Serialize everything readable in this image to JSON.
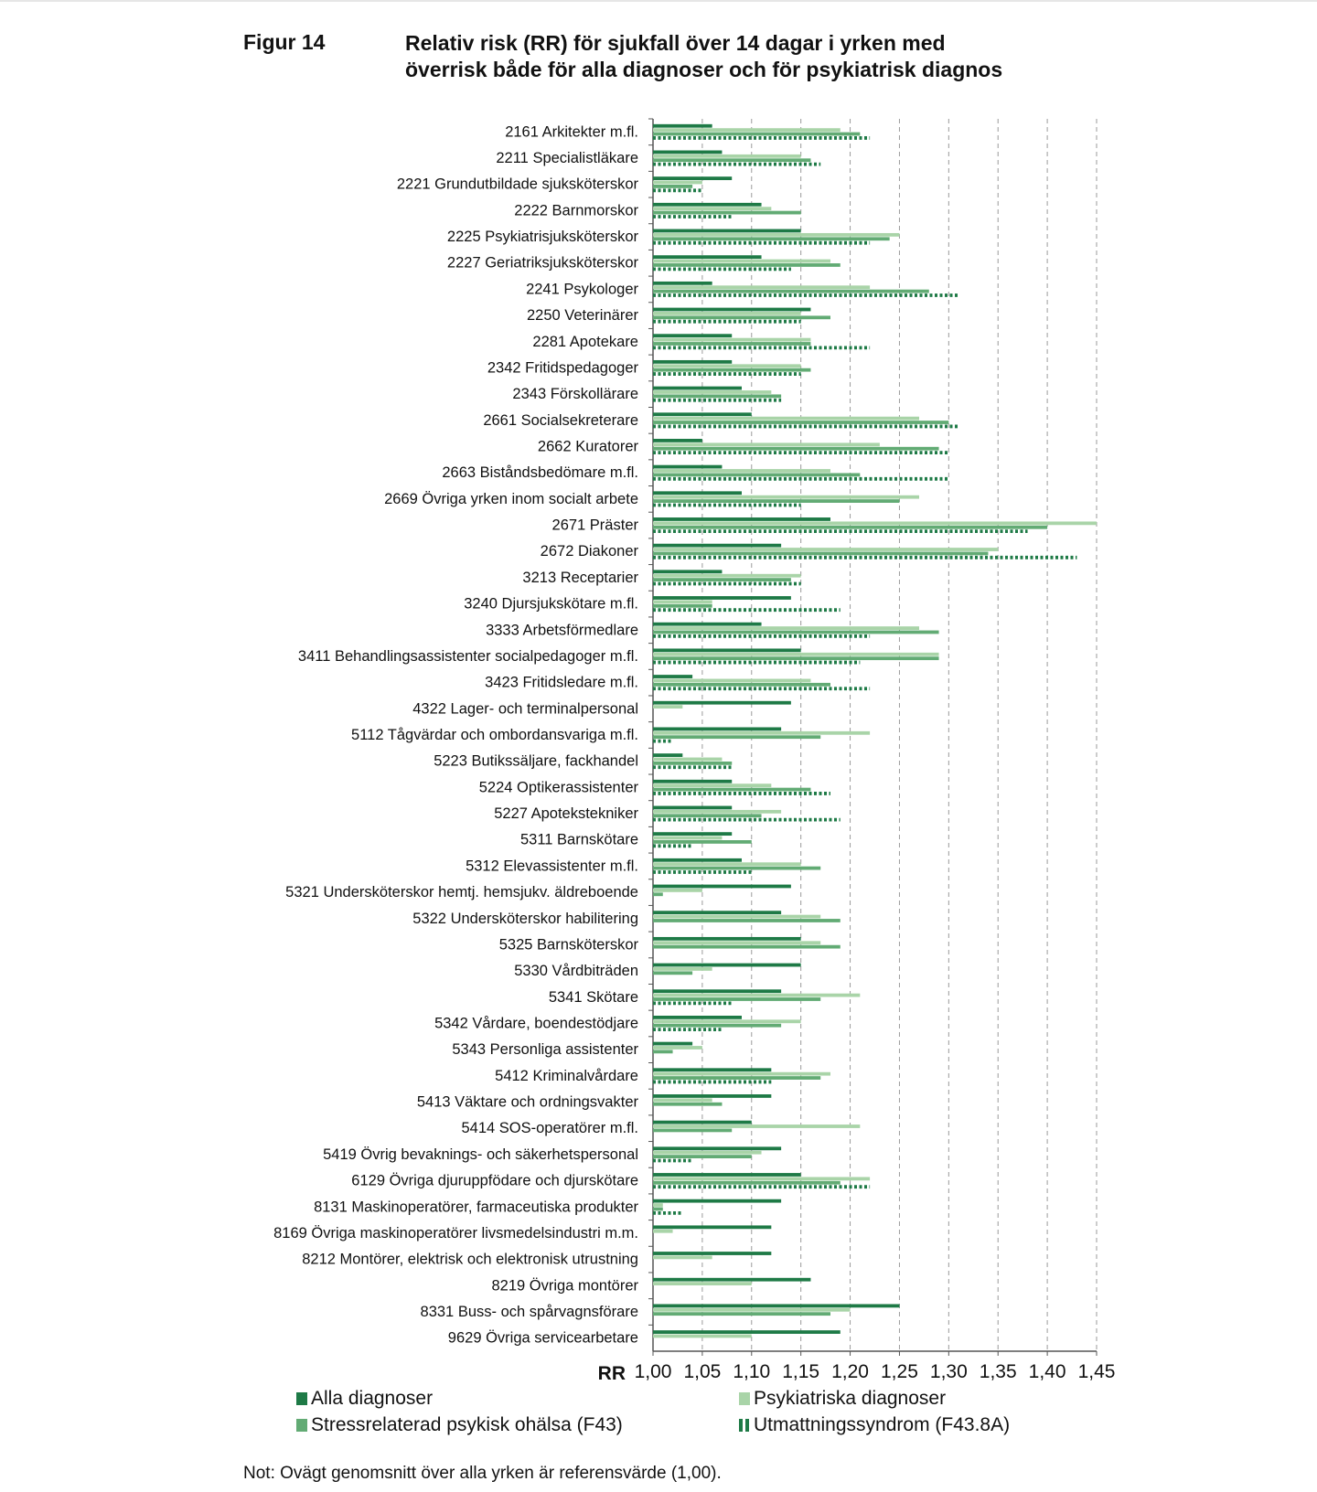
{
  "figure": {
    "label": "Figur 14",
    "title_line1": "Relativ risk (RR) för sjukfall över 14 dagar i yrken med",
    "title_line2": "överrisk både för alla diagnoser och för psykiatrisk diagnos"
  },
  "note": "Not: Ovägt genomsnitt över alla yrken är referensvärde (1,00).",
  "colors": {
    "alla": "#1e7a46",
    "psyk": "#a9d4a8",
    "stress": "#62ab74",
    "utmatt": "#1e7a46",
    "grid": "#9a9a9a"
  },
  "chart_data": {
    "type": "bar",
    "orientation": "horizontal",
    "xlabel": "RR",
    "xlim": [
      1.0,
      1.45
    ],
    "ticks": [
      "1,00",
      "1,05",
      "1,10",
      "1,15",
      "1,20",
      "1,25",
      "1,30",
      "1,35",
      "1,40",
      "1,45"
    ],
    "grid": "vertical dashed",
    "legend_position": "bottom",
    "categories": [
      "2161 Arkitekter m.fl.",
      "2211 Specialistläkare",
      "2221 Grundutbildade sjuksköterskor",
      "2222 Barnmorskor",
      "2225 Psykiatrisjuksköterskor",
      "2227 Geriatriksjuksköterskor",
      "2241 Psykologer",
      "2250 Veterinärer",
      "2281 Apotekare",
      "2342 Fritidspedagoger",
      "2343 Förskollärare",
      "2661 Socialsekreterare",
      "2662 Kuratorer",
      "2663 Biståndsbedömare m.fl.",
      "2669 Övriga yrken inom socialt arbete",
      "2671 Präster",
      "2672 Diakoner",
      "3213 Receptarier",
      "3240 Djursjukskötare m.fl.",
      "3333 Arbetsförmedlare",
      "3411 Behandlingsassistenter socialpedagoger m.fl.",
      "3423 Fritidsledare m.fl.",
      "4322 Lager- och terminalpersonal",
      "5112 Tågvärdar och ombordansvariga m.fl.",
      "5223 Butikssäljare, fackhandel",
      "5224 Optikerassistenter",
      "5227 Apotekstekniker",
      "5311 Barnskötare",
      "5312 Elevassistenter m.fl.",
      "5321 Undersköterskor hemtj. hemsjukv. äldreboende",
      "5322 Undersköterskor habilitering",
      "5325 Barnsköterskor",
      "5330 Vårdbiträden",
      "5341 Skötare",
      "5342 Vårdare, boendestödjare",
      "5343 Personliga assistenter",
      "5412 Kriminalvårdare",
      "5413 Väktare och ordningsvakter",
      "5414 SOS-operatörer m.fl.",
      "5419 Övrig bevaknings- och säkerhetspersonal",
      "6129 Övriga djuruppfödare och djurskötare",
      "8131 Maskinoperatörer, farmaceutiska produkter",
      "8169 Övriga maskinoperatörer livsmedelsindustri m.m.",
      "8212 Montörer, elektrisk och elektronisk utrustning",
      "8219 Övriga montörer",
      "8331 Buss- och spårvagnsförare",
      "9629 Övriga servicearbetare"
    ],
    "series": [
      {
        "name": "Alla diagnoser",
        "style": "solid-dark",
        "values": [
          1.06,
          1.07,
          1.08,
          1.11,
          1.15,
          1.11,
          1.06,
          1.16,
          1.08,
          1.08,
          1.09,
          1.1,
          1.05,
          1.07,
          1.09,
          1.18,
          1.13,
          1.07,
          1.14,
          1.11,
          1.15,
          1.04,
          1.14,
          1.13,
          1.03,
          1.08,
          1.08,
          1.08,
          1.09,
          1.14,
          1.13,
          1.15,
          1.15,
          1.13,
          1.09,
          1.04,
          1.12,
          1.12,
          1.1,
          1.13,
          1.15,
          1.13,
          1.12,
          1.12,
          1.16,
          1.25,
          1.19
        ]
      },
      {
        "name": "Psykiatriska diagnoser",
        "style": "solid-light",
        "values": [
          1.19,
          1.15,
          1.05,
          1.12,
          1.25,
          1.18,
          1.22,
          1.15,
          1.16,
          1.15,
          1.12,
          1.27,
          1.23,
          1.18,
          1.27,
          1.45,
          1.35,
          1.15,
          1.06,
          1.27,
          1.29,
          1.16,
          1.03,
          1.22,
          1.07,
          1.12,
          1.13,
          1.07,
          1.15,
          1.05,
          1.17,
          1.17,
          1.06,
          1.21,
          1.15,
          1.05,
          1.18,
          1.06,
          1.21,
          1.11,
          1.22,
          1.01,
          1.02,
          1.06,
          1.1,
          1.2,
          1.1
        ]
      },
      {
        "name": "Stressrelaterad psykisk ohälsa (F43)",
        "style": "solid-mid",
        "values": [
          1.21,
          1.16,
          1.04,
          1.15,
          1.24,
          1.19,
          1.28,
          1.18,
          1.16,
          1.16,
          1.13,
          1.3,
          1.29,
          1.21,
          1.25,
          1.4,
          1.34,
          1.14,
          1.06,
          1.29,
          1.29,
          1.18,
          null,
          1.17,
          1.08,
          1.16,
          1.11,
          1.1,
          1.17,
          1.01,
          1.19,
          1.19,
          1.04,
          1.17,
          1.13,
          1.02,
          1.17,
          1.07,
          1.08,
          1.1,
          1.19,
          1.01,
          null,
          null,
          null,
          1.18,
          null
        ]
      },
      {
        "name": "Utmattningssyndrom (F43.8A)",
        "style": "dotted",
        "values": [
          1.22,
          1.17,
          1.05,
          1.08,
          1.22,
          1.14,
          1.31,
          1.15,
          1.22,
          1.15,
          1.13,
          1.31,
          1.3,
          1.3,
          1.15,
          1.38,
          1.43,
          1.15,
          1.19,
          1.22,
          1.21,
          1.22,
          null,
          1.02,
          1.08,
          1.18,
          1.19,
          1.04,
          1.1,
          null,
          null,
          null,
          null,
          1.08,
          1.07,
          null,
          1.12,
          null,
          null,
          1.04,
          1.22,
          1.03,
          null,
          null,
          null,
          null,
          null
        ]
      }
    ]
  },
  "legend": {
    "alla": "Alla diagnoser",
    "psyk": "Psykiatriska diagnoser",
    "stress": "Stressrelaterad psykisk ohälsa (F43)",
    "utmatt": "Utmattningssyndrom (F43.8A)"
  }
}
